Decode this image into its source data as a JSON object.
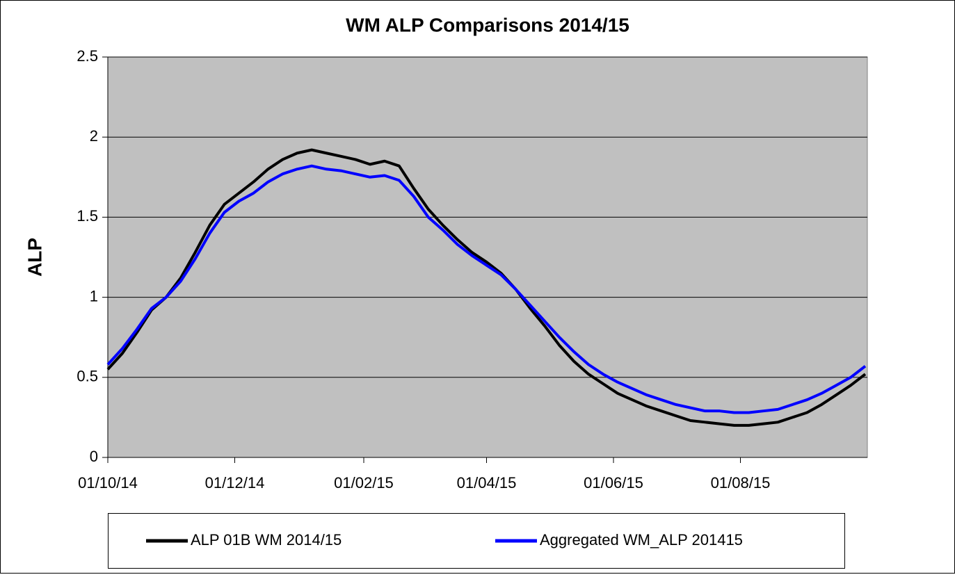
{
  "chart_data": {
    "type": "line",
    "title": "WM ALP Comparisons 2014/15",
    "y_label": "ALP",
    "x": [
      "2014-10-01",
      "2014-10-08",
      "2014-10-15",
      "2014-10-22",
      "2014-10-29",
      "2014-11-05",
      "2014-11-12",
      "2014-11-19",
      "2014-11-26",
      "2014-12-03",
      "2014-12-10",
      "2014-12-17",
      "2014-12-24",
      "2014-12-31",
      "2015-01-07",
      "2015-01-14",
      "2015-01-21",
      "2015-01-28",
      "2015-02-04",
      "2015-02-11",
      "2015-02-18",
      "2015-02-25",
      "2015-03-04",
      "2015-03-11",
      "2015-03-18",
      "2015-03-25",
      "2015-04-01",
      "2015-04-08",
      "2015-04-15",
      "2015-04-22",
      "2015-04-29",
      "2015-05-06",
      "2015-05-13",
      "2015-05-20",
      "2015-05-27",
      "2015-06-03",
      "2015-06-10",
      "2015-06-17",
      "2015-06-24",
      "2015-07-01",
      "2015-07-08",
      "2015-07-15",
      "2015-07-22",
      "2015-07-29",
      "2015-08-05",
      "2015-08-12",
      "2015-08-19",
      "2015-08-26",
      "2015-09-02",
      "2015-09-09",
      "2015-09-16",
      "2015-09-23",
      "2015-09-30"
    ],
    "series": [
      {
        "name": "ALP 01B WM 2014/15",
        "color": "#000000",
        "values": [
          0.55,
          0.65,
          0.78,
          0.92,
          1.0,
          1.12,
          1.28,
          1.45,
          1.58,
          1.65,
          1.72,
          1.8,
          1.86,
          1.9,
          1.92,
          1.9,
          1.88,
          1.86,
          1.83,
          1.85,
          1.82,
          1.68,
          1.55,
          1.45,
          1.36,
          1.28,
          1.22,
          1.15,
          1.05,
          0.93,
          0.82,
          0.7,
          0.6,
          0.52,
          0.46,
          0.4,
          0.36,
          0.32,
          0.29,
          0.26,
          0.23,
          0.22,
          0.21,
          0.2,
          0.2,
          0.21,
          0.22,
          0.25,
          0.28,
          0.33,
          0.39,
          0.45,
          0.52
        ]
      },
      {
        "name": "Aggregated WM_ALP 201415",
        "color": "#0000ff",
        "values": [
          0.58,
          0.68,
          0.8,
          0.93,
          1.0,
          1.1,
          1.24,
          1.4,
          1.53,
          1.6,
          1.65,
          1.72,
          1.77,
          1.8,
          1.82,
          1.8,
          1.79,
          1.77,
          1.75,
          1.76,
          1.73,
          1.63,
          1.5,
          1.42,
          1.33,
          1.26,
          1.2,
          1.14,
          1.05,
          0.95,
          0.85,
          0.75,
          0.66,
          0.58,
          0.52,
          0.47,
          0.43,
          0.39,
          0.36,
          0.33,
          0.31,
          0.29,
          0.29,
          0.28,
          0.28,
          0.29,
          0.3,
          0.33,
          0.36,
          0.4,
          0.45,
          0.5,
          0.57
        ]
      }
    ],
    "xlim": [
      "2014-10-01",
      "2015-10-01"
    ],
    "xticks": [
      {
        "value": "2014-10-01",
        "label": "01/10/14"
      },
      {
        "value": "2014-12-01",
        "label": "01/12/14"
      },
      {
        "value": "2015-02-01",
        "label": "01/02/15"
      },
      {
        "value": "2015-04-01",
        "label": "01/04/15"
      },
      {
        "value": "2015-06-01",
        "label": "01/06/15"
      },
      {
        "value": "2015-08-01",
        "label": "01/08/15"
      }
    ],
    "ylim": [
      0,
      2.5
    ],
    "yticks": [
      0,
      0.5,
      1,
      1.5,
      2,
      2.5
    ],
    "grid": true,
    "legend": "bottom",
    "plot_background": "#c0c0c0"
  }
}
